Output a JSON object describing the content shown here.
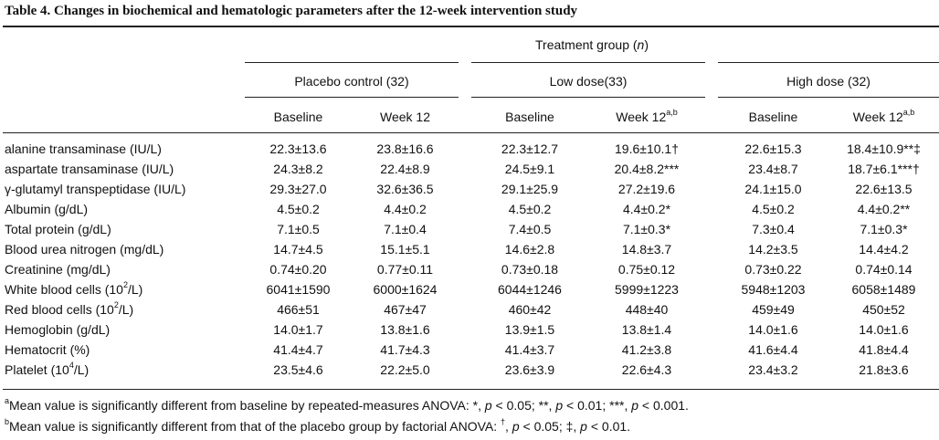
{
  "table": {
    "caption": "Table 4.  Changes in biochemical and hematologic parameters after the 12-week intervention study",
    "group_header_text": "Treatment group (",
    "group_header_n": "n",
    "group_header_close": ")",
    "groups": [
      "Placebo control (32)",
      "Low dose(33)",
      "High dose (32)"
    ],
    "col_baseline": "Baseline",
    "col_week12": "Week 12",
    "col_week12_sup": "a,b",
    "rows": [
      {
        "label": "alanine transaminase (IU/L)",
        "values": [
          "22.3±13.6",
          "23.8±16.6",
          "22.3±12.7",
          "19.6±10.1†",
          "22.6±15.3",
          "18.4±10.9**‡"
        ]
      },
      {
        "label": "aspartate transaminase (IU/L)",
        "values": [
          "24.3±8.2",
          "22.4±8.9",
          "24.5±9.1",
          "20.4±8.2***",
          "23.4±8.7",
          "18.7±6.1***†"
        ]
      },
      {
        "label": "γ-glutamyl transpeptidase (IU/L)",
        "values": [
          "29.3±27.0",
          "32.6±36.5",
          "29.1±25.9",
          "27.2±19.6",
          "24.1±15.0",
          "22.6±13.5"
        ]
      },
      {
        "label": "Albumin (g/dL)",
        "values": [
          "4.5±0.2",
          "4.4±0.2",
          "4.5±0.2",
          "4.4±0.2*",
          "4.5±0.2",
          "4.4±0.2**"
        ]
      },
      {
        "label": "Total protein (g/dL)",
        "values": [
          "7.1±0.5",
          "7.1±0.4",
          "7.4±0.5",
          "7.1±0.3*",
          "7.3±0.4",
          "7.1±0.3*"
        ]
      },
      {
        "label": "Blood urea nitrogen (mg/dL)",
        "values": [
          "14.7±4.5",
          "15.1±5.1",
          "14.6±2.8",
          "14.8±3.7",
          "14.2±3.5",
          "14.4±4.2"
        ]
      },
      {
        "label": "Creatinine (mg/dL)",
        "values": [
          "0.74±0.20",
          "0.77±0.11",
          "0.73±0.18",
          "0.75±0.12",
          "0.73±0.22",
          "0.74±0.14"
        ]
      },
      {
        "label_pre": "White blood cells (10",
        "label_sup": "2",
        "label_post": "/L)",
        "values": [
          "6041±1590",
          "6000±1624",
          "6044±1246",
          "5999±1223",
          "5948±1203",
          "6058±1489"
        ]
      },
      {
        "label_pre": "Red blood cells (10",
        "label_sup": "2",
        "label_post": "/L)",
        "values": [
          "466±51",
          "467±47",
          "460±42",
          "448±40",
          "459±49",
          "450±52"
        ]
      },
      {
        "label": "Hemoglobin (g/dL)",
        "values": [
          "14.0±1.7",
          "13.8±1.6",
          "13.9±1.5",
          "13.8±1.4",
          "14.0±1.6",
          "14.0±1.6"
        ]
      },
      {
        "label": "Hematocrit (%)",
        "values": [
          "41.4±4.7",
          "41.7±4.3",
          "41.4±3.7",
          "41.2±3.8",
          "41.6±4.4",
          "41.8±4.4"
        ]
      },
      {
        "label_pre": "Platelet (10",
        "label_sup": "4",
        "label_post": "/L)",
        "values": [
          "23.5±4.6",
          "22.2±5.0",
          "23.6±3.9",
          "22.6±4.3",
          "23.4±3.2",
          "21.8±3.6"
        ]
      }
    ],
    "footnote_a_mark": "a",
    "footnote_a_text": "Mean value is significantly different from baseline by repeated-measures ANOVA: *, ",
    "footnote_a_p1": "p",
    "footnote_a_t1": " < 0.05; **, ",
    "footnote_a_p2": "p",
    "footnote_a_t2": " < 0.01; ***, ",
    "footnote_a_p3": "p",
    "footnote_a_t3": " < 0.001.",
    "footnote_b_mark": "b",
    "footnote_b_text": "Mean value is significantly different from that of the placebo group by factorial ANOVA: ",
    "footnote_b_sym1": "†",
    "footnote_b_t1": ", ",
    "footnote_b_p1": "p",
    "footnote_b_t2": " < 0.05; ‡, ",
    "footnote_b_p2": "p",
    "footnote_b_t3": " < 0.01."
  }
}
